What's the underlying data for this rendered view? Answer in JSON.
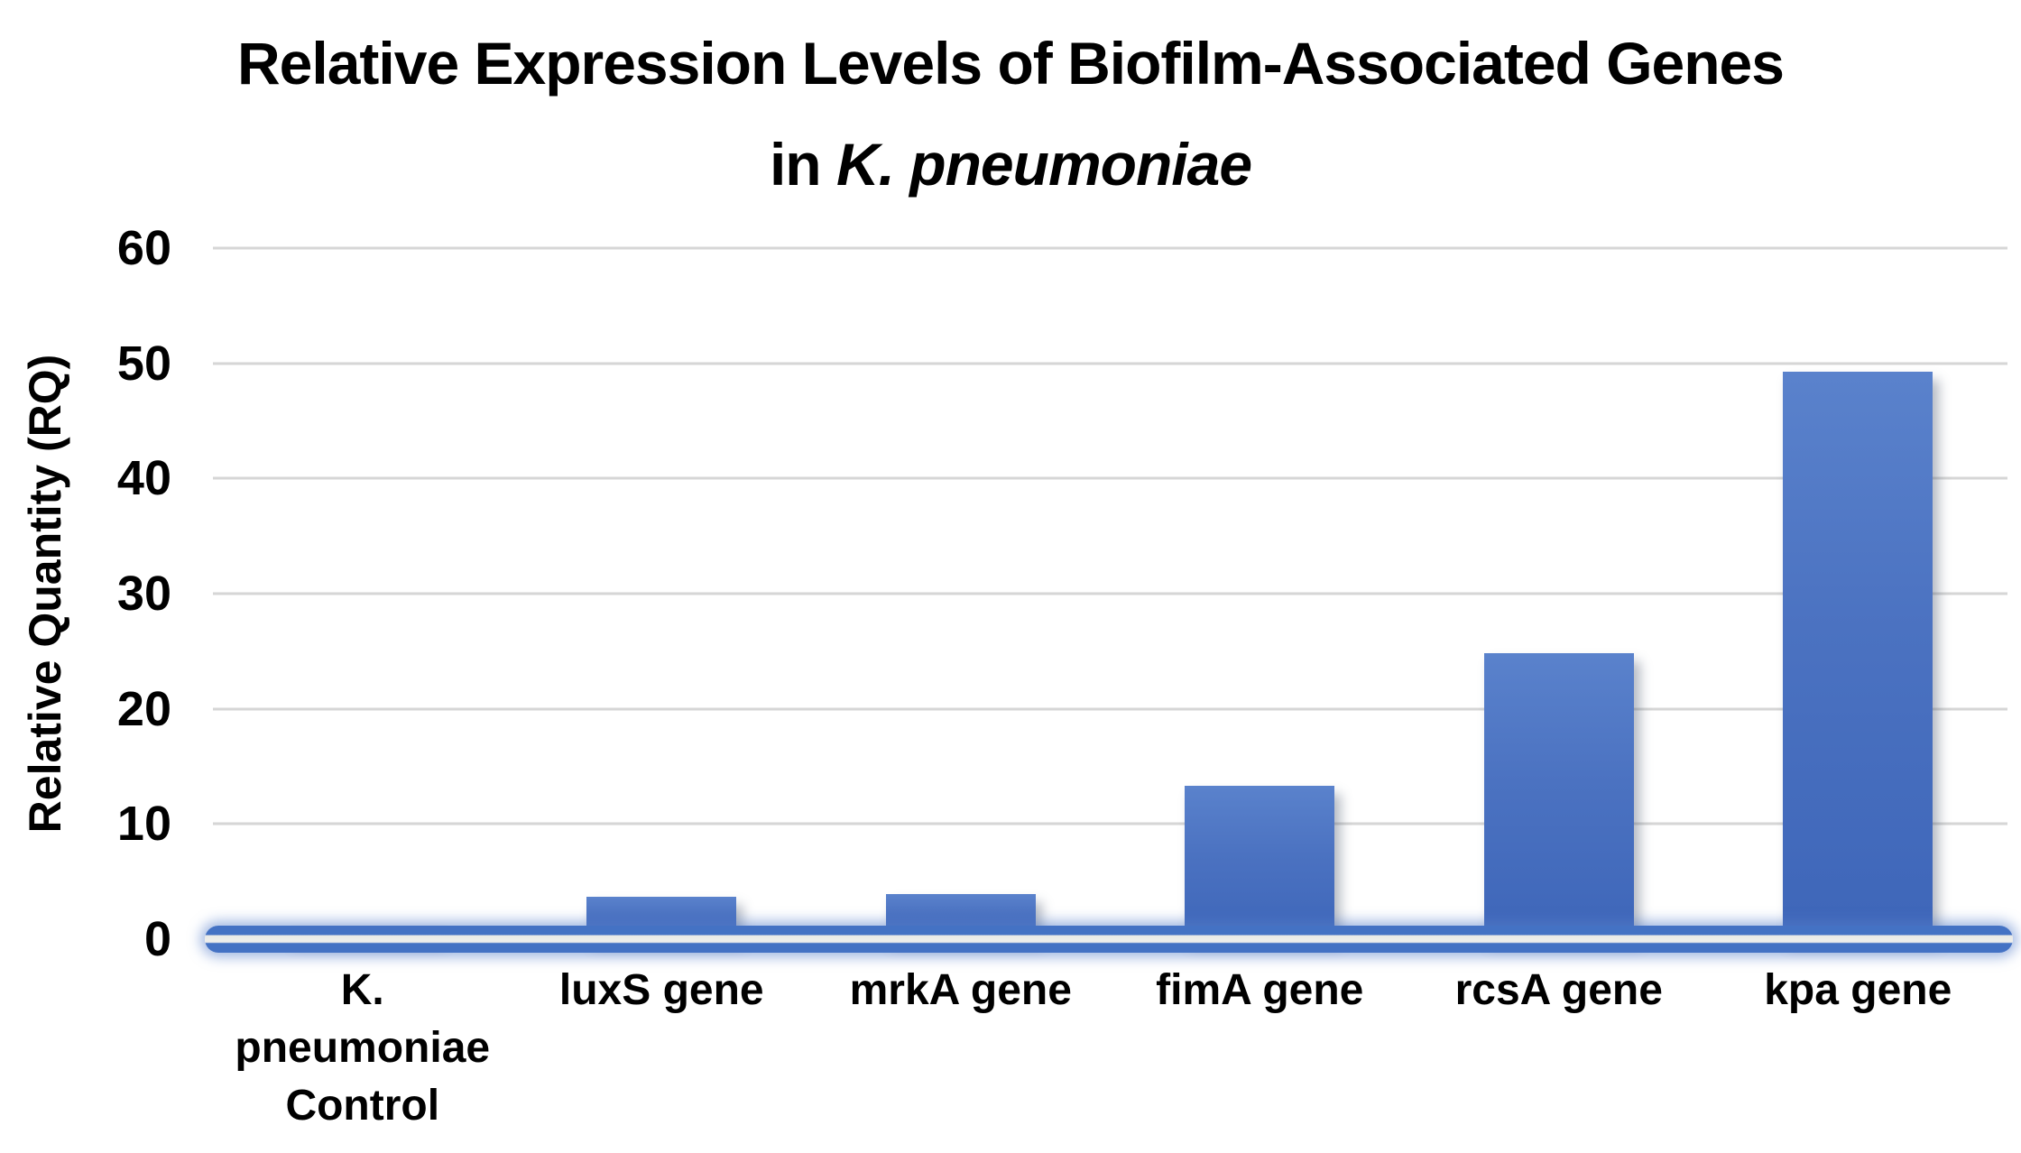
{
  "title": {
    "line1": "Relative Expression Levels of Biofilm-Associated Genes",
    "line2_prefix": "in ",
    "line2_italic": "K. pneumoniae"
  },
  "y_axis": {
    "label": "Relative Quantity (RQ)",
    "tick_labels": [
      "0",
      "10",
      "20",
      "30",
      "40",
      "50",
      "60"
    ]
  },
  "chart_data": {
    "type": "bar",
    "title": "Relative Expression Levels of Biofilm-Associated Genes in K. pneumoniae",
    "categories": [
      "K. pneumoniae Control",
      "luxS gene",
      "mrkA gene",
      "fimA gene",
      "rcsA gene",
      "kpa gene"
    ],
    "values": [
      1,
      3.7,
      3.9,
      13.3,
      24.8,
      49.3
    ],
    "xlabel": "",
    "ylabel": "Relative Quantity (RQ)",
    "ylim": [
      0,
      60
    ],
    "y_ticks": [
      0,
      10,
      20,
      30,
      40,
      50,
      60
    ],
    "grid": true,
    "legend": false,
    "colors": {
      "bar_top": "#5a82cc",
      "bar_bottom": "#3e66b9",
      "axis_band": "#4472c4",
      "axis_band_core": "#eeeeec",
      "gridline": "#d6d6d6",
      "text": "#000000"
    }
  }
}
